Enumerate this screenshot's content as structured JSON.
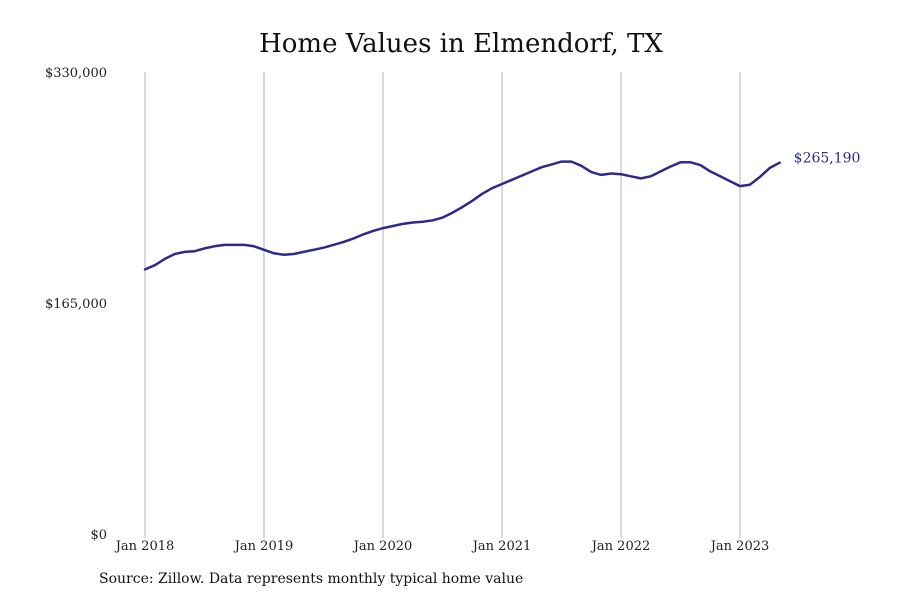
{
  "chart_data": {
    "type": "line",
    "title": "Home Values in Elmendorf, TX",
    "xlabel": "",
    "ylabel": "",
    "ylim": [
      0,
      330000
    ],
    "y_ticks": [
      "$330,000",
      "$165,000",
      "$0"
    ],
    "y_tick_values": [
      330000,
      165000,
      0
    ],
    "x_ticks": [
      "Jan 2018",
      "Jan 2019",
      "Jan 2020",
      "Jan 2021",
      "Jan 2022",
      "Jan 2023"
    ],
    "x_tick_values": [
      "2018-01",
      "2019-01",
      "2020-01",
      "2021-01",
      "2022-01",
      "2023-01"
    ],
    "grid": "vertical",
    "legend": "none",
    "line_color": "#2e2a8c",
    "end_label": "$265,190",
    "series": [
      {
        "x": [
          "2018-01",
          "2018-02",
          "2018-03",
          "2018-04",
          "2018-05",
          "2018-06",
          "2018-07",
          "2018-08",
          "2018-09",
          "2018-10",
          "2018-11",
          "2018-12",
          "2019-01",
          "2019-02",
          "2019-03",
          "2019-04",
          "2019-05",
          "2019-06",
          "2019-07",
          "2019-08",
          "2019-09",
          "2019-10",
          "2019-11",
          "2019-12",
          "2020-01",
          "2020-02",
          "2020-03",
          "2020-04",
          "2020-05",
          "2020-06",
          "2020-07",
          "2020-08",
          "2020-09",
          "2020-10",
          "2020-11",
          "2020-12",
          "2021-01",
          "2021-02",
          "2021-03",
          "2021-04",
          "2021-05",
          "2021-06",
          "2021-07",
          "2021-08",
          "2021-09",
          "2021-10",
          "2021-11",
          "2021-12",
          "2022-01",
          "2022-02",
          "2022-03",
          "2022-04",
          "2022-05",
          "2022-06",
          "2022-07",
          "2022-08",
          "2022-09",
          "2022-10",
          "2022-11",
          "2022-12",
          "2023-01",
          "2023-02",
          "2023-03",
          "2023-04",
          "2023-05"
        ],
        "values": [
          189000,
          192000,
          196500,
          200000,
          201500,
          202000,
          204000,
          205500,
          206500,
          206500,
          206500,
          205500,
          203000,
          200500,
          199500,
          200000,
          201500,
          203000,
          204500,
          206500,
          208500,
          211000,
          214000,
          216500,
          218500,
          220000,
          221500,
          222500,
          223000,
          224000,
          226000,
          229500,
          233500,
          238000,
          243000,
          247000,
          250000,
          253000,
          256000,
          259000,
          262000,
          264000,
          266000,
          266000,
          263000,
          258500,
          256500,
          257500,
          257000,
          255500,
          254000,
          255500,
          259000,
          262500,
          265500,
          265500,
          263500,
          259000,
          255500,
          252000,
          248500,
          249500,
          255000,
          261500,
          265190
        ]
      }
    ]
  },
  "source_note": "Source: Zillow. Data represents monthly typical home value"
}
